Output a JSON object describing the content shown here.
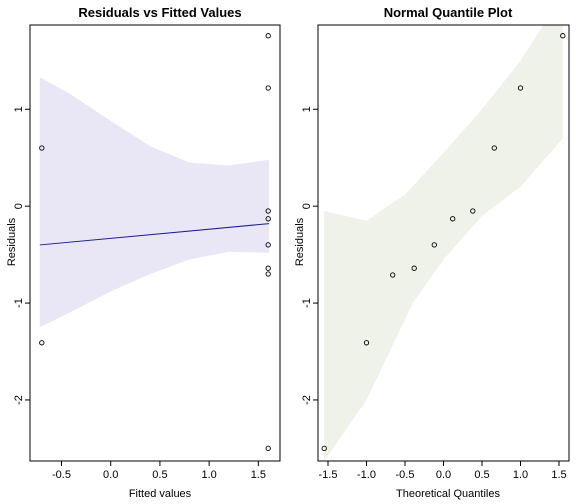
{
  "colors": {
    "panel1_band": "#e9e7f6",
    "panel1_line": "#1c1c8c",
    "panel2_band": "#eef2e9",
    "points": "#000000",
    "axis": "#000000"
  },
  "chart_data": [
    {
      "type": "scatter",
      "title": "Residuals vs Fitted Values",
      "xlabel": "Fitted values",
      "ylabel": "Residuals",
      "xlim": [
        -0.82,
        1.72
      ],
      "ylim": [
        -2.63,
        1.87
      ],
      "xticks": [
        -0.5,
        0.0,
        0.5,
        1.0,
        1.5
      ],
      "xtick_labels": [
        "-0.5",
        "0.0",
        "0.5",
        "1.0",
        "1.5"
      ],
      "yticks": [
        -2,
        -1,
        0,
        1
      ],
      "ytick_labels": [
        "-2",
        "-1",
        "0",
        "1"
      ],
      "points": [
        {
          "x": -0.7,
          "y": 0.6
        },
        {
          "x": -0.7,
          "y": -1.41
        },
        {
          "x": 1.6,
          "y": 1.76
        },
        {
          "x": 1.6,
          "y": 1.22
        },
        {
          "x": 1.6,
          "y": -0.05
        },
        {
          "x": 1.6,
          "y": -0.13
        },
        {
          "x": 1.6,
          "y": -0.4
        },
        {
          "x": 1.6,
          "y": -0.64
        },
        {
          "x": 1.6,
          "y": -0.7
        },
        {
          "x": 1.6,
          "y": -2.5
        }
      ],
      "fit_line": [
        {
          "x": -0.72,
          "y": -0.4
        },
        {
          "x": 1.61,
          "y": -0.18
        }
      ],
      "confidence_band": {
        "upper": [
          {
            "x": -0.72,
            "y": 1.33
          },
          {
            "x": -0.4,
            "y": 1.15
          },
          {
            "x": 0.0,
            "y": 0.88
          },
          {
            "x": 0.4,
            "y": 0.62
          },
          {
            "x": 0.8,
            "y": 0.45
          },
          {
            "x": 1.2,
            "y": 0.42
          },
          {
            "x": 1.61,
            "y": 0.48
          }
        ],
        "lower": [
          {
            "x": -0.72,
            "y": -1.25
          },
          {
            "x": -0.4,
            "y": -1.09
          },
          {
            "x": 0.0,
            "y": -0.88
          },
          {
            "x": 0.4,
            "y": -0.7
          },
          {
            "x": 0.8,
            "y": -0.55
          },
          {
            "x": 1.2,
            "y": -0.47
          },
          {
            "x": 1.61,
            "y": -0.48
          }
        ]
      },
      "grid": false,
      "legend": "none"
    },
    {
      "type": "scatter",
      "title": "Normal Quantile Plot",
      "xlabel": "Theoretical Quantiles",
      "ylabel": "Residuals",
      "xlim": [
        -1.63,
        1.63
      ],
      "ylim": [
        -2.63,
        1.87
      ],
      "xticks": [
        -1.5,
        -1.0,
        -0.5,
        0.0,
        0.5,
        1.0,
        1.5
      ],
      "xtick_labels": [
        "-1.5",
        "-1.0",
        "-0.5",
        "0.0",
        "0.5",
        "1.0",
        "1.5"
      ],
      "yticks": [
        -2,
        -1,
        0,
        1
      ],
      "ytick_labels": [
        "-2",
        "-1",
        "0",
        "1"
      ],
      "points": [
        {
          "x": -1.55,
          "y": -2.5
        },
        {
          "x": -1.0,
          "y": -1.41
        },
        {
          "x": -0.66,
          "y": -0.71
        },
        {
          "x": -0.38,
          "y": -0.64
        },
        {
          "x": -0.12,
          "y": -0.4
        },
        {
          "x": 0.12,
          "y": -0.13
        },
        {
          "x": 0.38,
          "y": -0.05
        },
        {
          "x": 0.66,
          "y": 0.6
        },
        {
          "x": 1.0,
          "y": 1.22
        },
        {
          "x": 1.55,
          "y": 1.76
        }
      ],
      "confidence_band": {
        "upper": [
          {
            "x": -1.55,
            "y": -0.05
          },
          {
            "x": -1.0,
            "y": -0.15
          },
          {
            "x": -0.5,
            "y": 0.12
          },
          {
            "x": 0.0,
            "y": 0.55
          },
          {
            "x": 0.5,
            "y": 1.0
          },
          {
            "x": 1.0,
            "y": 1.5
          },
          {
            "x": 1.3,
            "y": 1.87
          },
          {
            "x": 1.55,
            "y": 1.87
          }
        ],
        "lower": [
          {
            "x": -1.55,
            "y": -2.63
          },
          {
            "x": -1.0,
            "y": -2.0
          },
          {
            "x": -0.4,
            "y": -1.0
          },
          {
            "x": 0.0,
            "y": -0.55
          },
          {
            "x": 0.5,
            "y": -0.1
          },
          {
            "x": 1.0,
            "y": 0.2
          },
          {
            "x": 1.55,
            "y": 0.7
          }
        ]
      },
      "grid": false,
      "legend": "none"
    }
  ]
}
